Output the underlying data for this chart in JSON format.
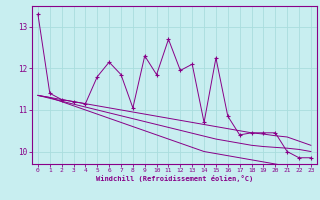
{
  "xlabel": "Windchill (Refroidissement éolien,°C)",
  "background_color": "#c8eef0",
  "grid_color": "#aadddd",
  "line_color": "#880088",
  "xlim": [
    -0.5,
    23.5
  ],
  "ylim": [
    9.7,
    13.5
  ],
  "xticks": [
    0,
    1,
    2,
    3,
    4,
    5,
    6,
    7,
    8,
    9,
    10,
    11,
    12,
    13,
    14,
    15,
    16,
    17,
    18,
    19,
    20,
    21,
    22,
    23
  ],
  "yticks": [
    10,
    11,
    12,
    13
  ],
  "hours": [
    0,
    1,
    2,
    3,
    4,
    5,
    6,
    7,
    8,
    9,
    10,
    11,
    12,
    13,
    14,
    15,
    16,
    17,
    18,
    19,
    20,
    21,
    22,
    23
  ],
  "windchill_main": [
    13.3,
    11.4,
    11.25,
    11.2,
    11.15,
    11.8,
    12.15,
    11.85,
    11.05,
    12.3,
    11.85,
    12.7,
    11.95,
    12.1,
    10.7,
    12.25,
    10.85,
    10.4,
    10.45,
    10.45,
    10.45,
    10.0,
    9.85,
    9.85
  ],
  "line_straight1": [
    11.35,
    11.3,
    11.2,
    11.1,
    11.0,
    10.9,
    10.8,
    10.7,
    10.6,
    10.5,
    10.4,
    10.3,
    10.2,
    10.1,
    10.0,
    9.95,
    9.9,
    9.85,
    9.8,
    9.75,
    9.7,
    9.65,
    9.6,
    9.55
  ],
  "line_straight2": [
    11.35,
    11.28,
    11.21,
    11.14,
    11.07,
    11.0,
    10.93,
    10.86,
    10.79,
    10.72,
    10.65,
    10.58,
    10.51,
    10.44,
    10.37,
    10.3,
    10.25,
    10.2,
    10.15,
    10.12,
    10.1,
    10.08,
    10.05,
    10.0
  ],
  "line_straight3": [
    11.35,
    11.3,
    11.25,
    11.2,
    11.15,
    11.1,
    11.05,
    11.0,
    10.95,
    10.9,
    10.85,
    10.8,
    10.75,
    10.7,
    10.65,
    10.6,
    10.55,
    10.5,
    10.45,
    10.42,
    10.38,
    10.35,
    10.25,
    10.15
  ]
}
